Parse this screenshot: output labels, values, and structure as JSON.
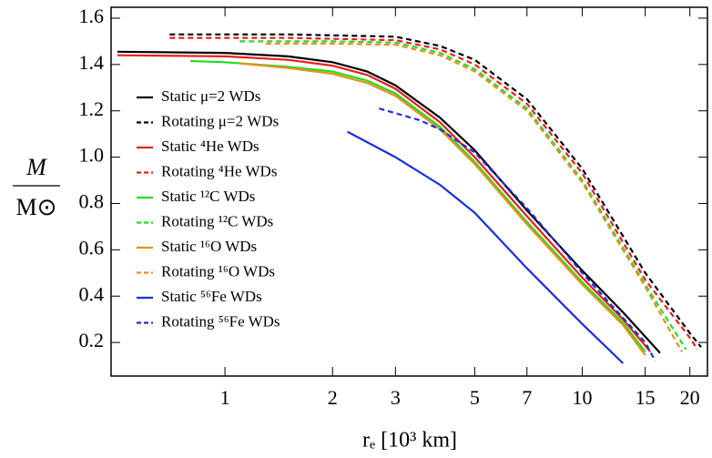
{
  "chart_data": {
    "type": "line",
    "xlabel": "rₑ [10³ km]",
    "ylabel_top": "M",
    "ylabel_bottom": "M⊙",
    "xscale": "log",
    "xlim": [
      0.48,
      22.4
    ],
    "ylim": [
      0.055,
      1.647
    ],
    "xticks": [
      1,
      2,
      3,
      5,
      7,
      10,
      15,
      20
    ],
    "yticks": [
      0.2,
      0.4,
      0.6,
      0.8,
      {
        "value": 1.0,
        "label": "1.0"
      },
      1.2,
      1.4,
      1.6
    ],
    "legend": "upper left",
    "series": [
      {
        "name": "Static μ=2 WDs",
        "color": "#000000",
        "dash": false,
        "x": [
          0.5,
          1,
          1.5,
          2,
          2.5,
          3,
          4,
          5,
          7,
          10,
          13,
          16.5
        ],
        "values": [
          1.455,
          1.45,
          1.435,
          1.41,
          1.37,
          1.31,
          1.17,
          1.03,
          0.77,
          0.51,
          0.33,
          0.155
        ]
      },
      {
        "name": "Rotating μ=2 WDs",
        "color": "#000000",
        "dash": true,
        "x": [
          0.7,
          1.5,
          3,
          4,
          5,
          7,
          10,
          15,
          20,
          21.5
        ],
        "values": [
          1.53,
          1.53,
          1.52,
          1.48,
          1.42,
          1.25,
          0.95,
          0.5,
          0.24,
          0.18
        ]
      },
      {
        "name": "Static ⁴He WDs",
        "color": "#ee1c1c",
        "dash": false,
        "x": [
          0.5,
          1,
          1.5,
          2,
          2.5,
          3,
          4,
          5,
          7,
          10,
          13,
          15.5
        ],
        "values": [
          1.44,
          1.435,
          1.42,
          1.395,
          1.355,
          1.295,
          1.15,
          1.0,
          0.745,
          0.48,
          0.3,
          0.16
        ]
      },
      {
        "name": "Rotating ⁴He WDs",
        "color": "#ee1c1c",
        "dash": true,
        "x": [
          0.7,
          1.5,
          3,
          4,
          5,
          7,
          10,
          15,
          20,
          21
        ],
        "values": [
          1.515,
          1.515,
          1.505,
          1.465,
          1.4,
          1.23,
          0.93,
          0.47,
          0.22,
          0.17
        ]
      },
      {
        "name": "Static ¹²C WDs",
        "color": "#22dd22",
        "dash": false,
        "x": [
          0.8,
          1,
          1.5,
          2,
          2.5,
          3,
          4,
          5,
          7,
          10,
          13,
          15
        ],
        "values": [
          1.415,
          1.41,
          1.39,
          1.37,
          1.33,
          1.275,
          1.13,
          0.98,
          0.72,
          0.46,
          0.285,
          0.16
        ]
      },
      {
        "name": "Rotating ¹²C WDs",
        "color": "#22dd22",
        "dash": true,
        "x": [
          1.1,
          2,
          3,
          4,
          5,
          7,
          10,
          15,
          19.5
        ],
        "values": [
          1.5,
          1.5,
          1.495,
          1.45,
          1.38,
          1.21,
          0.9,
          0.45,
          0.17
        ]
      },
      {
        "name": "Static ¹⁶O WDs",
        "color": "#e8901e",
        "dash": false,
        "x": [
          1.1,
          1.5,
          2,
          2.5,
          3,
          4,
          5,
          7,
          10,
          13,
          15
        ],
        "values": [
          1.405,
          1.385,
          1.36,
          1.32,
          1.265,
          1.12,
          0.97,
          0.71,
          0.45,
          0.275,
          0.145
        ]
      },
      {
        "name": "Rotating ¹⁶O WDs",
        "color": "#e8901e",
        "dash": true,
        "x": [
          1.3,
          2,
          3,
          4,
          5,
          7,
          10,
          15,
          19
        ],
        "values": [
          1.49,
          1.49,
          1.485,
          1.44,
          1.37,
          1.2,
          0.89,
          0.44,
          0.16
        ]
      },
      {
        "name": "Static ⁵⁶Fe WDs",
        "color": "#1a2ee0",
        "dash": false,
        "x": [
          2.2,
          3,
          4,
          5,
          7,
          10,
          13
        ],
        "values": [
          1.11,
          1.0,
          0.88,
          0.76,
          0.52,
          0.28,
          0.11
        ]
      },
      {
        "name": "Rotating ⁵⁶Fe  WDs",
        "color": "#1a2ee0",
        "dash": true,
        "x": [
          2.7,
          3.5,
          4,
          5,
          7,
          10,
          15,
          16
        ],
        "values": [
          1.21,
          1.16,
          1.12,
          1.02,
          0.78,
          0.5,
          0.2,
          0.12
        ]
      }
    ]
  }
}
